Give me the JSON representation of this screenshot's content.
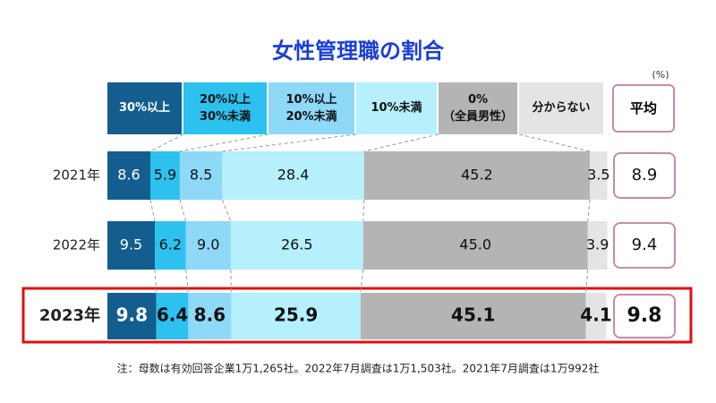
{
  "chart_data": {
    "type": "stacked-bar",
    "title": "女性管理職の割合",
    "unit_label": "(%)",
    "categories": [
      "2021年",
      "2022年",
      "2023年"
    ],
    "series": [
      {
        "name": "30%以上",
        "color": "#135e8f",
        "values": [
          8.6,
          9.5,
          9.8
        ]
      },
      {
        "name": "20%以上\n30%未満",
        "color": "#2cc1ef",
        "values": [
          5.9,
          6.2,
          6.4
        ]
      },
      {
        "name": "10%以上\n20%未満",
        "color": "#8ed8f8",
        "values": [
          8.5,
          9.0,
          8.6
        ],
        "value_labels": [
          "8.5",
          "9.0",
          "8.6"
        ]
      },
      {
        "name": "10%未満",
        "color": "#b5f0fc",
        "values": [
          28.4,
          26.5,
          25.9
        ]
      },
      {
        "name": "0%\n（全員男性）",
        "color": "#b4b4b4",
        "values": [
          45.2,
          45.0,
          45.1
        ],
        "value_labels": [
          "45.2",
          "45.0",
          "45.1"
        ]
      },
      {
        "name": "分からない",
        "color": "#e4e4e4",
        "values": [
          3.5,
          3.9,
          4.1
        ]
      }
    ],
    "average": {
      "name": "平均",
      "values": [
        8.9,
        9.4,
        9.8
      ]
    },
    "xlim": [
      0,
      100
    ],
    "note": "注：母数は有効回答企業1万1,265社。2022年7月調査は1万1,503社。2021年7月調査は1万992社"
  }
}
